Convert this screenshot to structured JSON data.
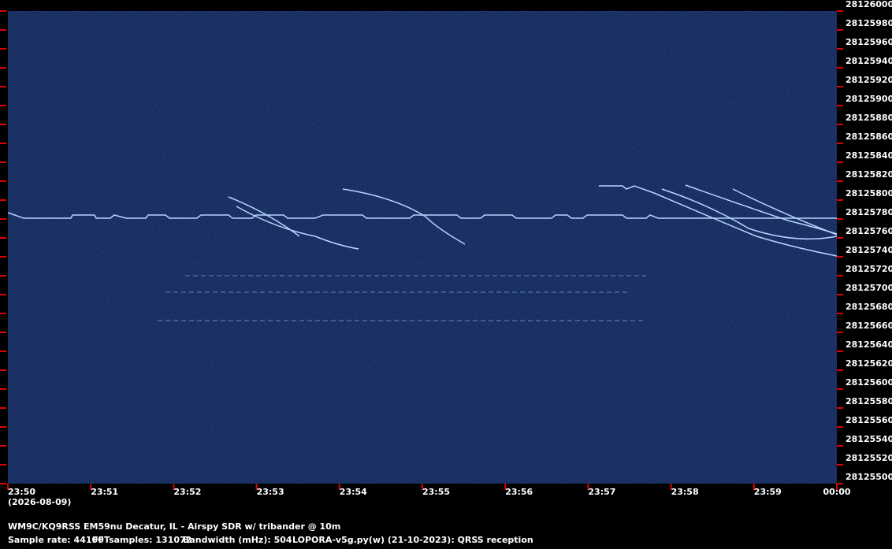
{
  "chart_data": {
    "type": "spectrogram",
    "date": "(2026-08-09)",
    "xlim": [
      0,
      10
    ],
    "xticks": [
      {
        "value": 0,
        "label": "23:50"
      },
      {
        "value": 1,
        "label": "23:51"
      },
      {
        "value": 2,
        "label": "23:52"
      },
      {
        "value": 3,
        "label": "23:53"
      },
      {
        "value": 4,
        "label": "23:54"
      },
      {
        "value": 5,
        "label": "23:55"
      },
      {
        "value": 6,
        "label": "23:56"
      },
      {
        "value": 7,
        "label": "23:57"
      },
      {
        "value": 8,
        "label": "23:58"
      },
      {
        "value": 9,
        "label": "23:59"
      },
      {
        "value": 10,
        "label": "00:00"
      }
    ],
    "ylim": [
      28125500,
      28126000
    ],
    "yticks": [
      28125500,
      28125520,
      28125540,
      28125560,
      28125580,
      28125600,
      28125620,
      28125640,
      28125660,
      28125680,
      28125700,
      28125720,
      28125740,
      28125760,
      28125780,
      28125800,
      28125820,
      28125840,
      28125860,
      28125880,
      28125900,
      28125920,
      28125940,
      28125960,
      28125980,
      28126000
    ],
    "tick_color": "#e00000",
    "footer": {
      "station": "WM9C/KQ9RSS EM59nu Decatur, IL - Airspy SDR w/ tribander @ 10m",
      "sample_rate": "Sample rate: 44100",
      "fft_samples": "FFTsamples: 131072",
      "bandwidth": "Bandwidth (mHz): 504",
      "software": "LOPORA-v5g.py(w) (21-10-2023): QRSS reception"
    }
  }
}
